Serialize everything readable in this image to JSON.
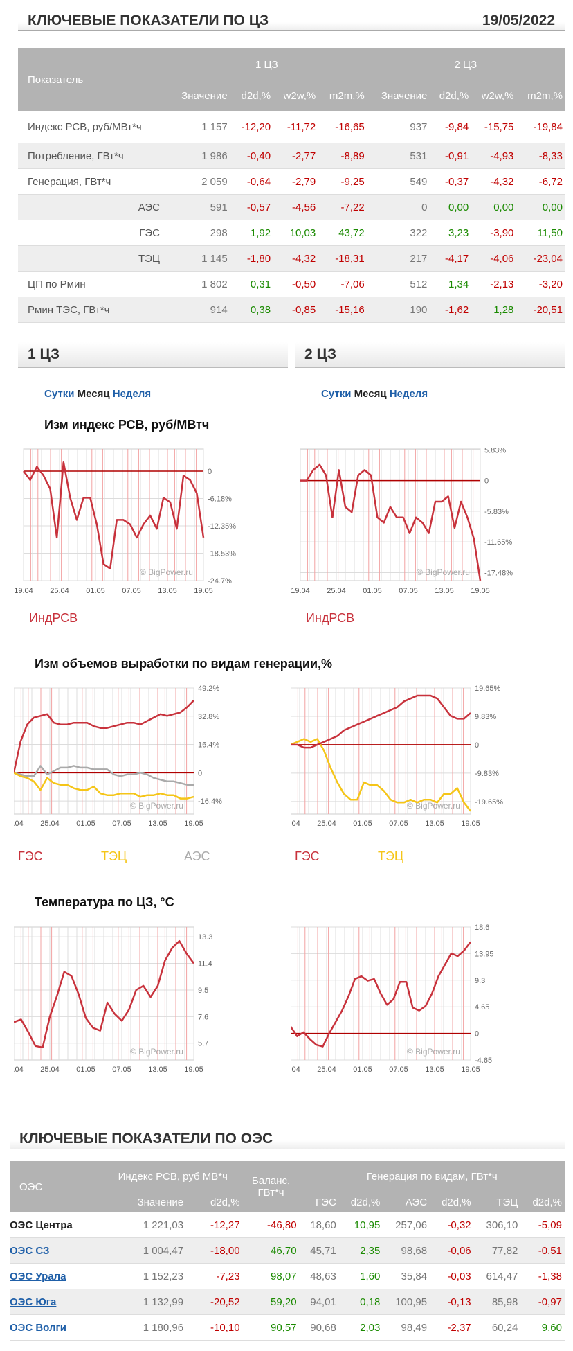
{
  "header": {
    "title": "КЛЮЧЕВЫЕ ПОКАЗАТЕЛИ ПО ЦЗ",
    "date": "19/05/2022"
  },
  "key_table": {
    "col_indicator": "Показатель",
    "zone1": "1 ЦЗ",
    "zone2": "2 ЦЗ",
    "sub": [
      "Значение",
      "d2d,%",
      "w2w,%",
      "m2m,%"
    ],
    "rows": [
      {
        "label": "Индекс РСВ, руб/МВт*ч",
        "sub": false,
        "v": [
          "1 157",
          "-12,20",
          "-11,72",
          "-16,65",
          "937",
          "-9,84",
          "-15,75",
          "-19,84"
        ]
      },
      {
        "label": "Потребление, ГВт*ч",
        "sub": false,
        "v": [
          "1 986",
          "-0,40",
          "-2,77",
          "-8,89",
          "531",
          "-0,91",
          "-4,93",
          "-8,33"
        ]
      },
      {
        "label": "Генерация, ГВт*ч",
        "sub": false,
        "v": [
          "2 059",
          "-0,64",
          "-2,79",
          "-9,25",
          "549",
          "-0,37",
          "-4,32",
          "-6,72"
        ]
      },
      {
        "label": "АЭС",
        "sub": true,
        "v": [
          "591",
          "-0,57",
          "-4,56",
          "-7,22",
          "0",
          "0,00",
          "0,00",
          "0,00"
        ]
      },
      {
        "label": "ГЭС",
        "sub": true,
        "v": [
          "298",
          "1,92",
          "10,03",
          "43,72",
          "322",
          "3,23",
          "-3,90",
          "11,50"
        ]
      },
      {
        "label": "ТЭЦ",
        "sub": true,
        "v": [
          "1 145",
          "-1,80",
          "-4,32",
          "-18,31",
          "217",
          "-4,17",
          "-4,06",
          "-23,04"
        ]
      },
      {
        "label": "ЦП по Рмин",
        "sub": false,
        "v": [
          "1 802",
          "0,31",
          "-0,50",
          "-7,06",
          "512",
          "1,34",
          "-2,13",
          "-3,20"
        ]
      },
      {
        "label": "Рмин ТЭС, ГВт*ч",
        "sub": false,
        "v": [
          "914",
          "0,38",
          "-0,85",
          "-15,16",
          "190",
          "-1,62",
          "1,28",
          "-20,51"
        ]
      }
    ]
  },
  "sections": {
    "left": "1 ЦЗ",
    "right": "2 ЦЗ"
  },
  "tabs": {
    "day": "Сутки",
    "month": "Месяц",
    "week": "Неделя"
  },
  "chart_titles": {
    "price": "Изм индекс РСВ, руб/МВтч",
    "gen": "Изм объемов выработки по видам генерации,%",
    "temp": "Температура по ЦЗ, °С"
  },
  "watermark": "© BigPower.ru",
  "x_ticks": [
    "19.04",
    "25.04",
    "01.05",
    "07.05",
    "13.05",
    "19.05"
  ],
  "colors": {
    "red": "#c8323c",
    "yellow": "#f5c518",
    "gray": "#aaaaaa",
    "zero": "#b00000"
  },
  "chart_data": [
    {
      "type": "line",
      "zone": "1 ЦЗ",
      "ylim": [
        -24.7,
        5
      ],
      "yticks": [
        "0",
        "-6.18%",
        "-12.35%",
        "-18.53%",
        "-24.7%"
      ],
      "ytick_values": [
        0,
        -6.18,
        -12.35,
        -18.53,
        -24.7
      ],
      "series": [
        {
          "name": "ИндРСВ",
          "color": "red",
          "values": [
            0,
            -2,
            1,
            -1,
            -4,
            -15,
            2,
            -6,
            -11,
            -6,
            -6,
            -12,
            -21,
            -22,
            -11,
            -11,
            -12,
            -15,
            -12,
            -10,
            -13,
            -6,
            -7,
            -13,
            -1,
            -2,
            -5,
            -15
          ]
        }
      ]
    },
    {
      "type": "line",
      "zone": "2 ЦЗ",
      "ylim": [
        -19,
        6
      ],
      "yticks": [
        "5.83%",
        "0",
        "-5.83%",
        "-11.65%",
        "-17.48%"
      ],
      "ytick_values": [
        5.83,
        0,
        -5.83,
        -11.65,
        -17.48
      ],
      "series": [
        {
          "name": "ИндРСВ",
          "color": "red",
          "values": [
            0,
            0,
            2,
            3,
            1,
            -7,
            2,
            -5,
            -6,
            1,
            2,
            1,
            -7,
            -8,
            -5,
            -7,
            -7,
            -10,
            -7,
            -8,
            -10,
            -4,
            -4,
            -3,
            -9,
            -4,
            -7,
            -11,
            -19
          ]
        }
      ]
    },
    {
      "type": "line",
      "zone": "1 ЦЗ",
      "ylim": [
        -24,
        49.2
      ],
      "yticks": [
        "49.2%",
        "32.8%",
        "16.4%",
        "0",
        "-16.4%"
      ],
      "ytick_values": [
        49.2,
        32.8,
        16.4,
        0,
        -16.4
      ],
      "series": [
        {
          "name": "ГЭС",
          "color": "red",
          "values": [
            0,
            18,
            28,
            32,
            33,
            34,
            29,
            28,
            28,
            29,
            29,
            29,
            27,
            26,
            26,
            27,
            28,
            29,
            29,
            28,
            30,
            32,
            34,
            33,
            34,
            35,
            38,
            42
          ]
        },
        {
          "name": "ТЭЦ",
          "color": "yellow",
          "values": [
            0,
            -2,
            -3,
            -5,
            -10,
            -3,
            -6,
            -7,
            -7,
            -9,
            -10,
            -10,
            -8,
            -12,
            -13,
            -13,
            -12,
            -12,
            -12,
            -14,
            -13,
            -13,
            -12,
            -13,
            -13,
            -15,
            -15,
            -14
          ]
        },
        {
          "name": "АЭС",
          "color": "gray",
          "values": [
            0,
            -1,
            -2,
            -2,
            4,
            -1,
            1,
            3,
            3,
            4,
            3,
            3,
            2,
            2,
            2,
            -1,
            -2,
            -1,
            -1,
            0,
            -1,
            -3,
            -4,
            -5,
            -5,
            -6,
            -7,
            -7
          ]
        }
      ]
    },
    {
      "type": "line",
      "zone": "2 ЦЗ",
      "ylim": [
        -24,
        19.65
      ],
      "yticks": [
        "19.65%",
        "9.83%",
        "0",
        "-9.83%",
        "-19.65%"
      ],
      "ytick_values": [
        19.65,
        9.83,
        0,
        -9.83,
        -19.65
      ],
      "series": [
        {
          "name": "ГЭС",
          "color": "red",
          "values": [
            0,
            0,
            -1,
            -1,
            0,
            1,
            2,
            3,
            5,
            6,
            7,
            8,
            9,
            10,
            11,
            12,
            13,
            15,
            16,
            17,
            17,
            17,
            16,
            13,
            10,
            9,
            9,
            11
          ]
        },
        {
          "name": "ТЭЦ",
          "color": "yellow",
          "values": [
            0,
            1,
            2,
            1,
            2,
            -2,
            -8,
            -13,
            -17,
            -19,
            -19,
            -13,
            -14,
            -14,
            -16,
            -19,
            -20,
            -20,
            -19,
            -20,
            -19,
            -19,
            -20,
            -17,
            -17,
            -15,
            -20,
            -23
          ]
        }
      ]
    },
    {
      "type": "line",
      "zone": "1 ЦЗ",
      "ylim": [
        4.5,
        14
      ],
      "yticks": [
        "13.3",
        "11.4",
        "9.5",
        "7.6",
        "5.7"
      ],
      "ytick_values": [
        13.3,
        11.4,
        9.5,
        7.6,
        5.7
      ],
      "series": [
        {
          "name": "Температура",
          "color": "red",
          "values": [
            7.2,
            7.4,
            6.5,
            5.5,
            5.4,
            7.6,
            9.1,
            10.8,
            10.5,
            9.2,
            7.5,
            6.8,
            6.6,
            8.6,
            7.8,
            7.3,
            8.1,
            9.5,
            9.8,
            9.0,
            9.8,
            11.6,
            12.5,
            13.0,
            12.1,
            11.4
          ]
        }
      ]
    },
    {
      "type": "line",
      "zone": "2 ЦЗ",
      "ylim": [
        -4.65,
        18.6
      ],
      "yticks": [
        "18.6",
        "13.95",
        "9.3",
        "4.65",
        "0",
        "-4.65"
      ],
      "ytick_values": [
        18.6,
        13.95,
        9.3,
        4.65,
        0,
        -4.65
      ],
      "series": [
        {
          "name": "Температура",
          "color": "red",
          "values": [
            1.2,
            -0.5,
            0.2,
            -1,
            -2,
            -2.3,
            0,
            2,
            4,
            6.5,
            9.5,
            10,
            9.2,
            9.5,
            7,
            5,
            6,
            9,
            9,
            4.5,
            4,
            4.8,
            7,
            10,
            12,
            14,
            13.5,
            14.5,
            16
          ]
        }
      ]
    }
  ],
  "legends": {
    "price": [
      "ИндРСВ"
    ],
    "gen_left": [
      "ГЭС",
      "ТЭЦ",
      "АЭС"
    ],
    "gen_right": [
      "ГЭС",
      "ТЭЦ"
    ]
  },
  "oes_header": {
    "title": "КЛЮЧЕВЫЕ ПОКАЗАТЕЛИ ПО ОЭС"
  },
  "oes_table": {
    "col_oes": "ОЭС",
    "col_price": "Индекс РСВ, руб МВ*ч",
    "col_balance": "Баланс, ГВт*ч",
    "col_gen": "Генерация по видам, ГВт*ч",
    "sub": [
      "Значение",
      "d2d,%",
      "ГЭС",
      "d2d,%",
      "АЭС",
      "d2d,%",
      "ТЭЦ",
      "d2d,%"
    ],
    "rows": [
      {
        "name": "ОЭС Центра",
        "link": false,
        "v": [
          "1 221,03",
          "-12,27",
          "-46,80",
          "18,60",
          "10,95",
          "257,06",
          "-0,32",
          "306,10",
          "-5,09"
        ]
      },
      {
        "name": "ОЭС СЗ",
        "link": true,
        "v": [
          "1 004,47",
          "-18,00",
          "46,70",
          "45,71",
          "2,35",
          "98,68",
          "-0,06",
          "77,82",
          "-0,51"
        ]
      },
      {
        "name": "ОЭС Урала",
        "link": true,
        "v": [
          "1 152,23",
          "-7,23",
          "98,07",
          "48,63",
          "1,60",
          "35,84",
          "-0,03",
          "614,47",
          "-1,38"
        ]
      },
      {
        "name": "ОЭС Юга",
        "link": true,
        "v": [
          "1 132,99",
          "-20,52",
          "59,20",
          "94,01",
          "0,18",
          "100,95",
          "-0,13",
          "85,98",
          "-0,97"
        ]
      },
      {
        "name": "ОЭС Волги",
        "link": true,
        "v": [
          "1 180,96",
          "-10,10",
          "90,57",
          "90,68",
          "2,03",
          "98,49",
          "-2,37",
          "60,24",
          "9,60"
        ]
      }
    ]
  }
}
